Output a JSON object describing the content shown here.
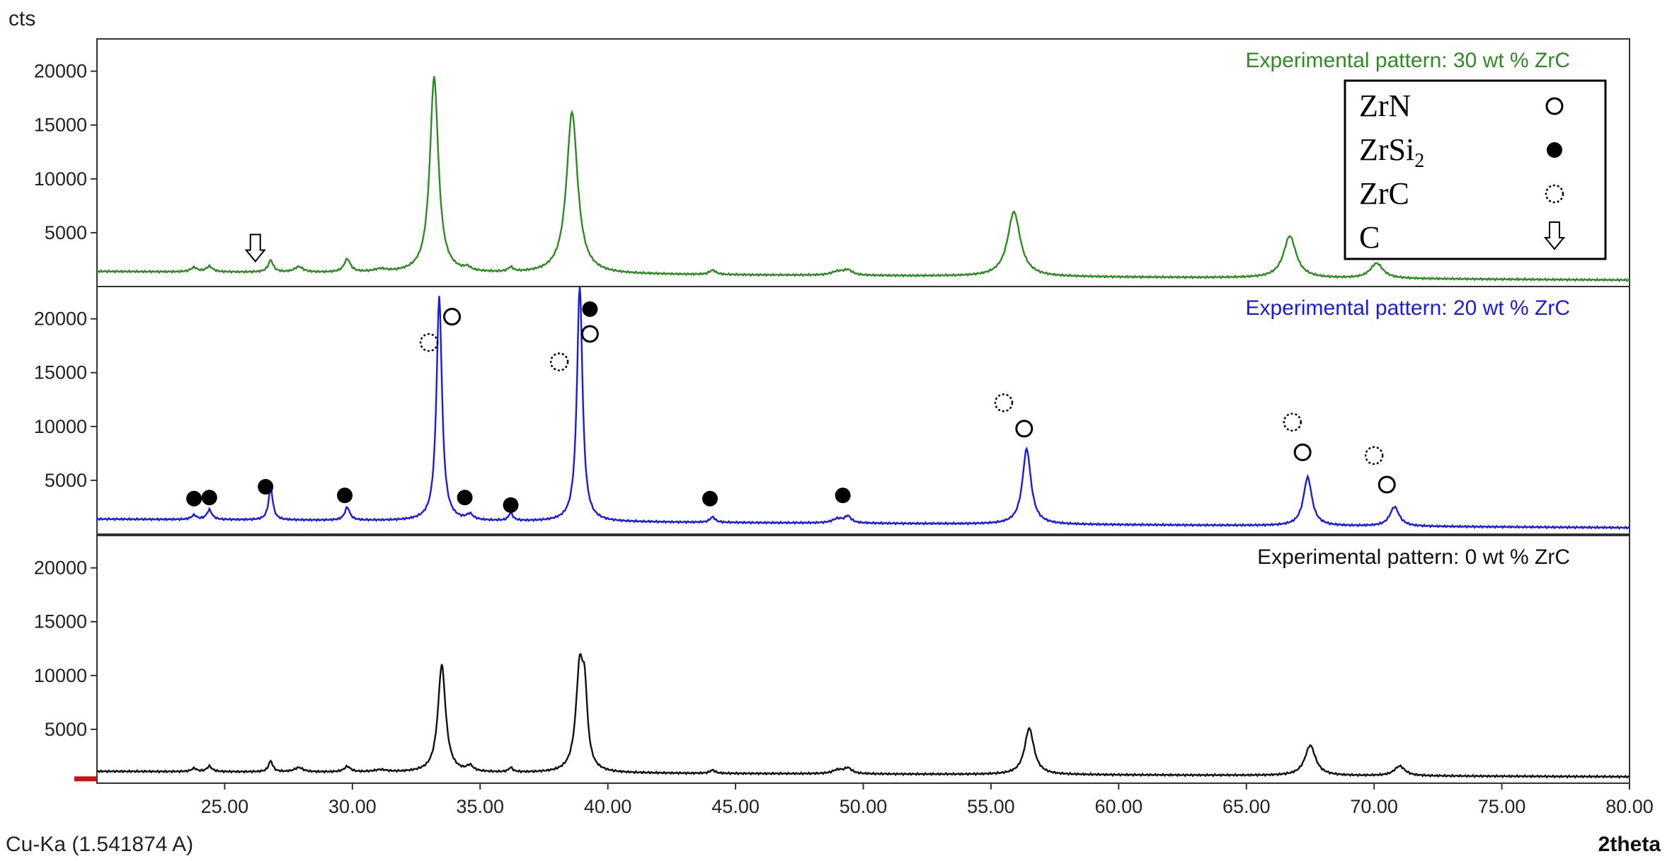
{
  "chart_data": {
    "type": "line",
    "y_unit_label": "cts",
    "x_axis_label": "2theta",
    "radiation_label": "Cu-Ka (1.541874 A)",
    "xlim": [
      20.0,
      80.0
    ],
    "x_ticks": [
      "25.00",
      "30.00",
      "35.00",
      "40.00",
      "45.00",
      "50.00",
      "55.00",
      "60.00",
      "65.00",
      "70.00",
      "75.00",
      "80.00"
    ],
    "ylim": [
      0,
      23000
    ],
    "y_ticks": [
      "5000",
      "10000",
      "15000",
      "20000"
    ],
    "panels": [
      {
        "title": "Experimental pattern: 30 wt % ZrC",
        "color": "#2e8b22",
        "baseline": 1400,
        "baseline_end": 600,
        "peaks": [
          [
            23.8,
            400,
            0.15
          ],
          [
            24.4,
            500,
            0.15
          ],
          [
            26.8,
            1100,
            0.12
          ],
          [
            27.9,
            500,
            0.2
          ],
          [
            29.8,
            1200,
            0.15
          ],
          [
            31.1,
            250,
            0.3
          ],
          [
            33.2,
            18200,
            0.2
          ],
          [
            34.5,
            300,
            0.15
          ],
          [
            36.2,
            400,
            0.12
          ],
          [
            38.6,
            15000,
            0.26
          ],
          [
            44.1,
            400,
            0.15
          ],
          [
            49.0,
            350,
            0.3
          ],
          [
            49.4,
            450,
            0.2
          ],
          [
            55.9,
            6000,
            0.3
          ],
          [
            66.7,
            3900,
            0.3
          ],
          [
            70.1,
            1400,
            0.3
          ]
        ]
      },
      {
        "title": "Experimental pattern: 20  wt % ZrC",
        "color": "#1a1ae0",
        "baseline": 1400,
        "baseline_end": 600,
        "peaks": [
          [
            23.8,
            400,
            0.12
          ],
          [
            24.4,
            900,
            0.12
          ],
          [
            26.8,
            3000,
            0.1
          ],
          [
            29.8,
            1200,
            0.12
          ],
          [
            33.4,
            20800,
            0.13
          ],
          [
            34.6,
            500,
            0.15
          ],
          [
            36.2,
            700,
            0.1
          ],
          [
            38.9,
            22000,
            0.13
          ],
          [
            44.1,
            500,
            0.12
          ],
          [
            49.0,
            400,
            0.25
          ],
          [
            49.4,
            600,
            0.15
          ],
          [
            56.4,
            7000,
            0.2
          ],
          [
            67.4,
            4500,
            0.2
          ],
          [
            70.8,
            1800,
            0.22
          ]
        ]
      },
      {
        "title": "Experimental pattern: 0 wt % ZrC",
        "color": "#111111",
        "baseline": 1100,
        "baseline_end": 600,
        "peaks": [
          [
            23.8,
            300,
            0.12
          ],
          [
            24.4,
            500,
            0.12
          ],
          [
            26.8,
            1000,
            0.1
          ],
          [
            27.9,
            400,
            0.2
          ],
          [
            29.8,
            500,
            0.15
          ],
          [
            31.1,
            200,
            0.3
          ],
          [
            33.5,
            10000,
            0.18
          ],
          [
            34.6,
            500,
            0.15
          ],
          [
            36.2,
            400,
            0.1
          ],
          [
            38.9,
            9500,
            0.18
          ],
          [
            39.1,
            5500,
            0.12
          ],
          [
            44.1,
            300,
            0.12
          ],
          [
            49.0,
            350,
            0.25
          ],
          [
            49.4,
            500,
            0.18
          ],
          [
            56.5,
            4300,
            0.22
          ],
          [
            67.5,
            2800,
            0.25
          ],
          [
            71.0,
            900,
            0.25
          ]
        ]
      }
    ],
    "markers": {
      "panel_index": 1,
      "zrn_open_circle": [
        [
          33.9,
          20200
        ],
        [
          39.3,
          18600
        ],
        [
          56.3,
          9800
        ],
        [
          67.2,
          7600
        ],
        [
          70.5,
          4600
        ]
      ],
      "zrsi2_filled_circle": [
        [
          23.8,
          3300
        ],
        [
          24.4,
          3400
        ],
        [
          26.6,
          4400
        ],
        [
          29.7,
          3600
        ],
        [
          34.4,
          3400
        ],
        [
          36.2,
          2700
        ],
        [
          39.3,
          20900
        ],
        [
          44.0,
          3300
        ],
        [
          49.2,
          3600
        ]
      ],
      "zrc_dotted_circle": [
        [
          33.0,
          17800
        ],
        [
          38.1,
          16000
        ],
        [
          55.5,
          12200
        ],
        [
          66.8,
          10400
        ],
        [
          70.0,
          7300
        ]
      ],
      "carbon_arrow": {
        "panel_index": 0,
        "x": 26.2,
        "y": 2200
      }
    },
    "legend": {
      "placement": "top-right",
      "items": [
        {
          "label": "ZrN",
          "symbol": "open-circle"
        },
        {
          "label": "ZrSi",
          "sub": "2",
          "symbol": "filled-circle"
        },
        {
          "label": "ZrC",
          "symbol": "dotted-circle"
        },
        {
          "label": "C",
          "symbol": "down-arrow"
        }
      ]
    }
  }
}
